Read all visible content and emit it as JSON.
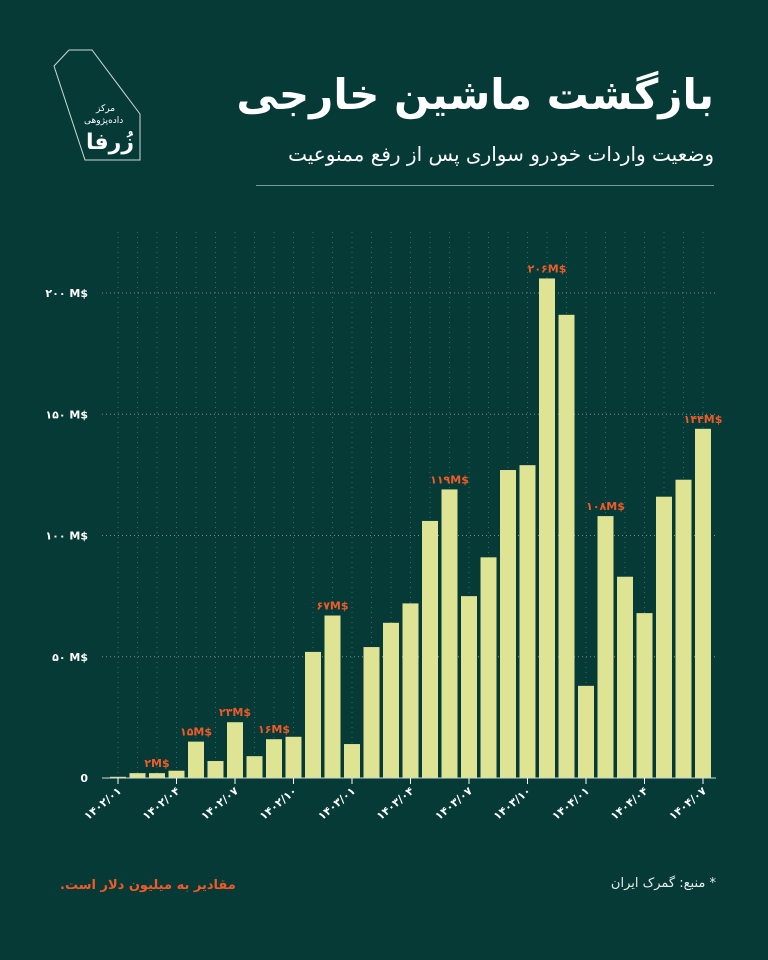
{
  "header": {
    "title": "بازگشت ماشین خارجی",
    "subtitle": "وضعیت واردات خودرو سواری پس از رفع ممنوعیت"
  },
  "logo": {
    "line1": "مرکز",
    "line2": "داده‌پژوهی",
    "name": "زُرفا"
  },
  "footer": {
    "note": "مقادیر به میلیون دلار است.",
    "source": "* منبع: گمرک ایران"
  },
  "colors": {
    "background": "#063a37",
    "bar": "#dfe394",
    "label": "#f05a28"
  },
  "chart_data": {
    "type": "bar",
    "title": "بازگشت ماشین خارجی",
    "xlabel": "",
    "ylabel": "",
    "ylim": [
      0,
      225
    ],
    "grid": true,
    "yticks": [
      {
        "v": 0,
        "label": "0"
      },
      {
        "v": 50,
        "label": "۵۰ M$"
      },
      {
        "v": 100,
        "label": "۱۰۰ M$"
      },
      {
        "v": 150,
        "label": "۱۵۰ M$"
      },
      {
        "v": 200,
        "label": "۲۰۰ M$"
      }
    ],
    "xticks": [
      {
        "i": 0,
        "label": "۱۴۰۲/۰۱"
      },
      {
        "i": 3,
        "label": "۱۴۰۲/۰۴"
      },
      {
        "i": 6,
        "label": "۱۴۰۲/۰۷"
      },
      {
        "i": 9,
        "label": "۱۴۰۲/۱۰"
      },
      {
        "i": 12,
        "label": "۱۴۰۳/۰۱"
      },
      {
        "i": 15,
        "label": "۱۴۰۳/۰۴"
      },
      {
        "i": 18,
        "label": "۱۴۰۳/۰۷"
      },
      {
        "i": 21,
        "label": "۱۴۰۳/۱۰"
      },
      {
        "i": 24,
        "label": "۱۴۰۴/۰۱"
      },
      {
        "i": 27,
        "label": "۱۴۰۴/۰۴"
      },
      {
        "i": 30,
        "label": "۱۴۰۴/۰۷"
      }
    ],
    "values": [
      0.5,
      2,
      2,
      3,
      15,
      7,
      23,
      9,
      16,
      17,
      52,
      67,
      14,
      54,
      64,
      72,
      106,
      119,
      75,
      91,
      127,
      129,
      206,
      191,
      38,
      108,
      83,
      68,
      116,
      123,
      144
    ],
    "annotations": [
      {
        "i": 2,
        "label": "۲M$"
      },
      {
        "i": 4,
        "label": "۱۵M$"
      },
      {
        "i": 6,
        "label": "۲۳M$"
      },
      {
        "i": 8,
        "label": "۱۶M$"
      },
      {
        "i": 11,
        "label": "۶۷M$"
      },
      {
        "i": 17,
        "label": "۱۱۹M$"
      },
      {
        "i": 22,
        "label": "۲۰۶M$"
      },
      {
        "i": 25,
        "label": "۱۰۸M$"
      },
      {
        "i": 30,
        "label": "۱۴۴M$"
      }
    ]
  }
}
